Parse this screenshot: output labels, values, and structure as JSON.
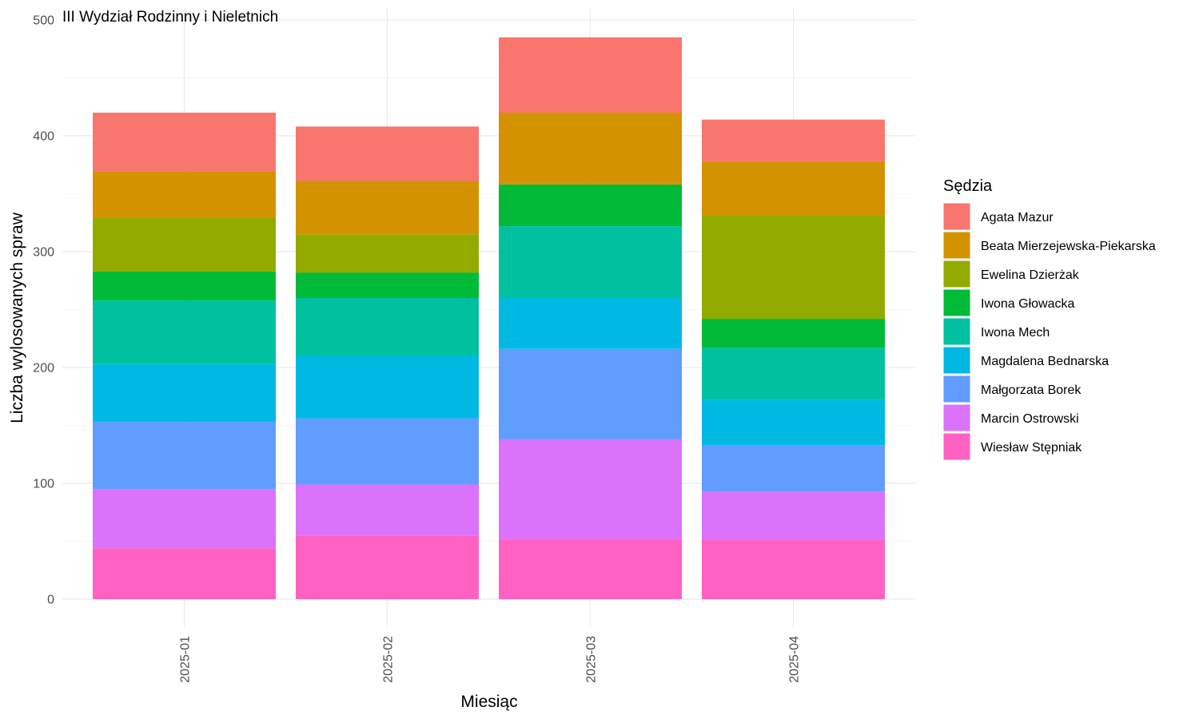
{
  "chart_data": {
    "type": "bar",
    "stacked": true,
    "title": "III Wydział Rodzinny i Nieletnich",
    "xlabel": "Miesiąc",
    "ylabel": "Liczba wylosowanych spraw",
    "ylim": [
      0,
      500
    ],
    "yticks": [
      0,
      100,
      200,
      300,
      400,
      500
    ],
    "grid": true,
    "legend_title": "Sędzia",
    "legend_position": "right",
    "categories": [
      "2025-01",
      "2025-02",
      "2025-03",
      "2025-04"
    ],
    "series": [
      {
        "name": "Wiesław Stępniak",
        "color": "#FF61C3",
        "values": [
          44,
          55,
          52,
          51
        ]
      },
      {
        "name": "Marcin Ostrowski",
        "color": "#DB72FB",
        "values": [
          51,
          44,
          86,
          42
        ]
      },
      {
        "name": "Małgorzata Borek",
        "color": "#619CFF",
        "values": [
          58,
          57,
          78,
          40
        ]
      },
      {
        "name": "Magdalena Bednarska",
        "color": "#00B9E3",
        "values": [
          50,
          54,
          44,
          39
        ]
      },
      {
        "name": "Iwona Mech",
        "color": "#00C19F",
        "values": [
          55,
          50,
          62,
          45
        ]
      },
      {
        "name": "Iwona Głowacka",
        "color": "#00BA38",
        "values": [
          25,
          22,
          36,
          25
        ]
      },
      {
        "name": "Ewelina Dzierżak",
        "color": "#93AA00",
        "values": [
          46,
          33,
          0,
          89
        ]
      },
      {
        "name": "Beata Mierzejewska-Piekarska",
        "color": "#D39200",
        "values": [
          40,
          46,
          62,
          47
        ]
      },
      {
        "name": "Agata Mazur",
        "color": "#F8766D",
        "values": [
          51,
          47,
          65,
          36
        ]
      }
    ],
    "legend_order": [
      "Agata Mazur",
      "Beata Mierzejewska-Piekarska",
      "Ewelina Dzierżak",
      "Iwona Głowacka",
      "Iwona Mech",
      "Magdalena Bednarska",
      "Małgorzata Borek",
      "Marcin Ostrowski",
      "Wiesław Stępniak"
    ]
  }
}
